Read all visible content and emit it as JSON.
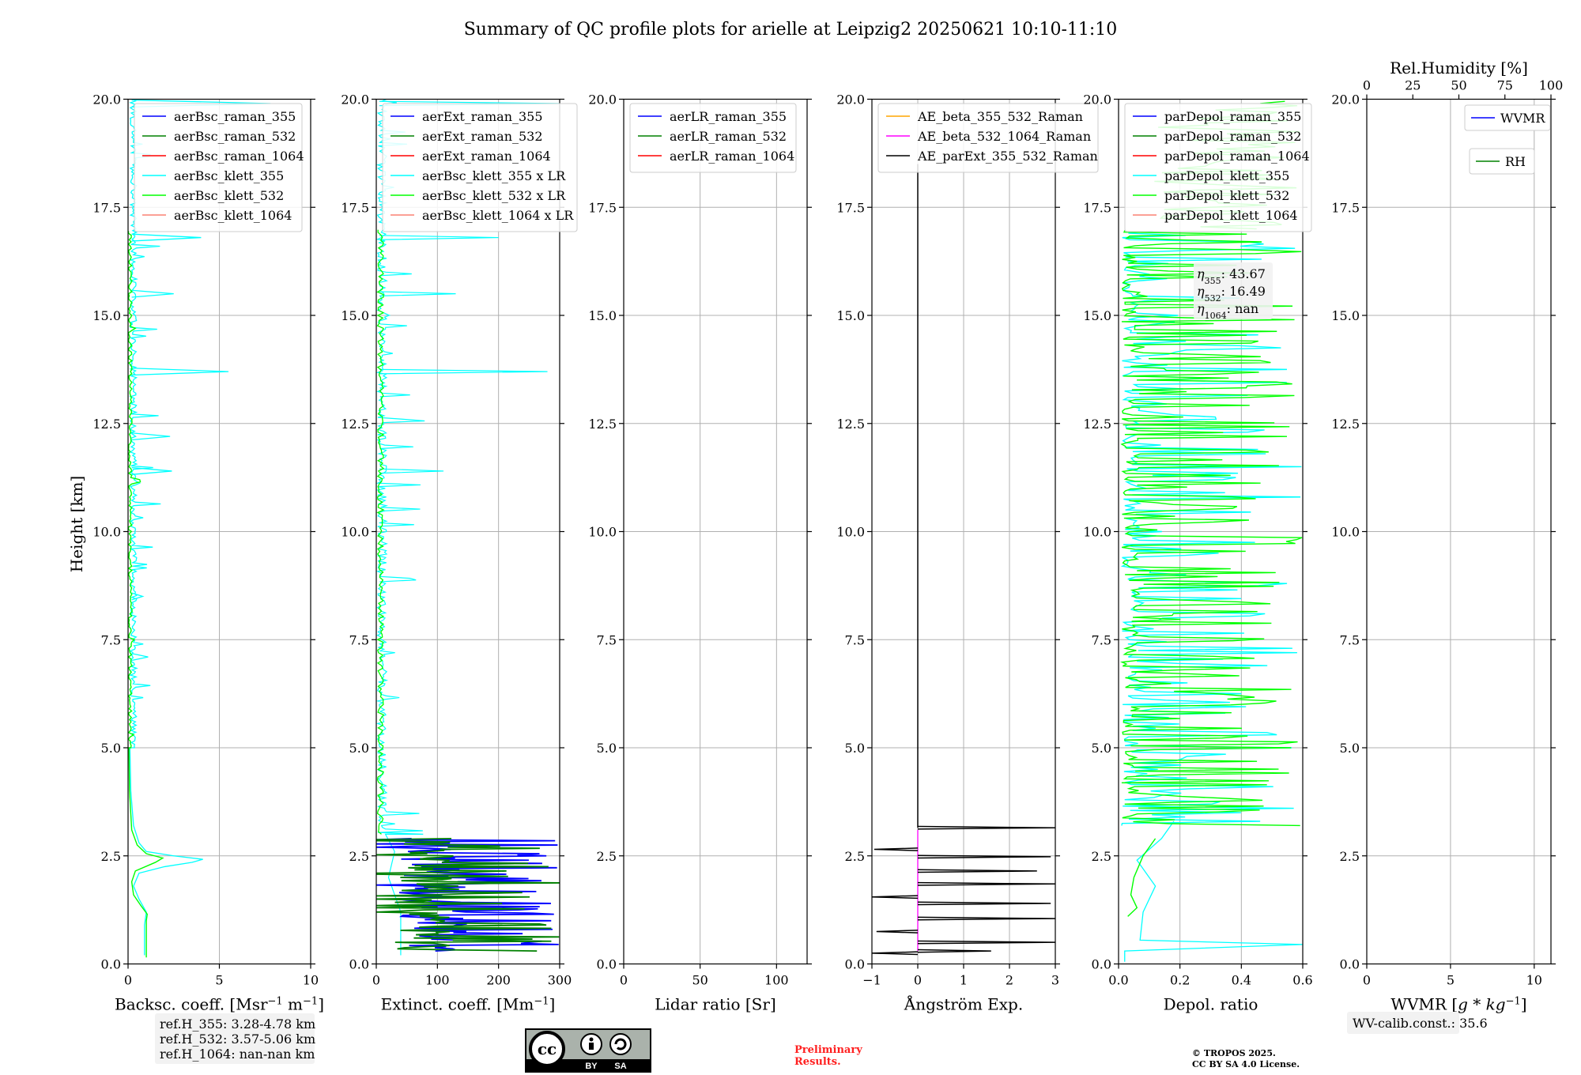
{
  "figure": {
    "title": "Summary of QC profile plots for arielle at Leipzig2 20250621 10:10-11:10",
    "ylabel": "Height [km]",
    "ref_heights": [
      "ref.H_355: 3.28-4.78 km",
      "ref.H_532: 3.57-5.06 km",
      "ref.H_1064: nan-nan km"
    ],
    "license_badge": {
      "left": "cc",
      "by": "BY",
      "sa": "SA"
    },
    "preliminary": [
      "Preliminary",
      "Results."
    ],
    "copyright": [
      "© TROPOS 2025.",
      "CC BY SA 4.0 License."
    ],
    "wv_calib": "WV-calib.const.: 35.6",
    "eta_box": [
      {
        "sym": "η",
        "sub": "355",
        "val": ": 43.67"
      },
      {
        "sym": "η",
        "sub": "532",
        "val": ": 16.49"
      },
      {
        "sym": "η",
        "sub": "1064",
        "val": ": nan"
      }
    ],
    "colors": {
      "blue": "#0000ff",
      "green": "#008000",
      "red": "#ff0000",
      "cyan": "#00ffff",
      "lime": "#00ff00",
      "salmon": "#fa8072",
      "orange": "#ffa500",
      "magenta": "#ff00ff",
      "black": "#000000"
    }
  },
  "chart_data": [
    {
      "id": "bsc",
      "type": "line",
      "xlabel_main": "Backsc. coeff. [Msr",
      "xlabel_sup1": "−1",
      "xlabel_mid": " m",
      "xlabel_sup2": "−1",
      "xlabel_end": "]",
      "xlim": [
        0,
        10
      ],
      "xticks": [
        0,
        5,
        10
      ],
      "ylim": [
        0,
        20
      ],
      "yticks": [
        "0.0",
        "2.5",
        "5.0",
        "7.5",
        "10.0",
        "12.5",
        "15.0",
        "17.5",
        "20.0"
      ],
      "legend": [
        "aerBsc_raman_355",
        "aerBsc_raman_532",
        "aerBsc_raman_1064",
        "aerBsc_klett_355",
        "aerBsc_klett_532",
        "aerBsc_klett_1064"
      ],
      "legend_colors": [
        "blue",
        "green",
        "red",
        "cyan",
        "lime",
        "salmon"
      ],
      "series": [
        {
          "name": "aerBsc_klett_355",
          "color": "cyan",
          "style": "noisy_bsc355",
          "points": [
            [
              0.9,
              0.2
            ],
            [
              0.9,
              0.9
            ],
            [
              1.0,
              1.2
            ],
            [
              0.6,
              1.5
            ],
            [
              0.3,
              1.8
            ],
            [
              0.6,
              2.1
            ],
            [
              2.0,
              2.25
            ],
            [
              3.5,
              2.35
            ],
            [
              4.1,
              2.42
            ],
            [
              2.5,
              2.5
            ],
            [
              1.0,
              2.6
            ],
            [
              0.6,
              2.8
            ],
            [
              0.3,
              3.2
            ],
            [
              0.15,
              4.0
            ],
            [
              0.1,
              5.0
            ]
          ]
        },
        {
          "name": "aerBsc_klett_532",
          "color": "lime",
          "style": "noisy_bsc532",
          "points": [
            [
              1.0,
              0.15
            ],
            [
              1.0,
              1.0
            ],
            [
              1.05,
              1.15
            ],
            [
              0.7,
              1.35
            ],
            [
              0.3,
              1.6
            ],
            [
              0.2,
              1.9
            ],
            [
              0.4,
              2.15
            ],
            [
              1.5,
              2.35
            ],
            [
              1.9,
              2.45
            ],
            [
              1.0,
              2.55
            ],
            [
              0.5,
              2.75
            ],
            [
              0.2,
              3.1
            ],
            [
              0.08,
              4.0
            ],
            [
              0.05,
              5.0
            ]
          ]
        }
      ],
      "spikes_355": [
        [
          13.7,
          5.5
        ],
        [
          11.4,
          2.4
        ],
        [
          8.5,
          0.8
        ],
        [
          7.1,
          1.1
        ],
        [
          16.8,
          4.0
        ],
        [
          15.5,
          2.5
        ],
        [
          12.2,
          2.3
        ],
        [
          19.9,
          7.8
        ]
      ]
    },
    {
      "id": "ext",
      "type": "line",
      "xlabel_main": "Extinct. coeff. [Mm",
      "xlabel_sup1": "−1",
      "xlabel_end": "]",
      "xlim": [
        0,
        300
      ],
      "xticks": [
        0,
        100,
        200,
        300
      ],
      "ylim": [
        0,
        20
      ],
      "yticks": [
        "0.0",
        "2.5",
        "5.0",
        "7.5",
        "10.0",
        "12.5",
        "15.0",
        "17.5",
        "20.0"
      ],
      "legend": [
        "aerExt_raman_355",
        "aerExt_raman_532",
        "aerExt_raman_1064",
        "aerBsc_klett_355 x LR",
        "aerBsc_klett_532 x LR",
        "aerBsc_klett_1064 x LR"
      ],
      "legend_colors": [
        "blue",
        "green",
        "red",
        "cyan",
        "lime",
        "salmon"
      ],
      "spikes_355": [
        [
          13.7,
          280
        ],
        [
          11.4,
          110
        ],
        [
          16.8,
          200
        ],
        [
          15.5,
          130
        ],
        [
          19.9,
          300
        ]
      ]
    },
    {
      "id": "lr",
      "type": "line",
      "xlabel": "Lidar ratio [Sr]",
      "xlim": [
        0,
        120
      ],
      "xticks": [
        0,
        50,
        100
      ],
      "ylim": [
        0,
        20
      ],
      "yticks": [
        "0.0",
        "2.5",
        "5.0",
        "7.5",
        "10.0",
        "12.5",
        "15.0",
        "17.5",
        "20.0"
      ],
      "legend": [
        "aerLR_raman_355",
        "aerLR_raman_532",
        "aerLR_raman_1064"
      ],
      "legend_colors": [
        "blue",
        "green",
        "red"
      ]
    },
    {
      "id": "ae",
      "type": "line",
      "xlabel": "Ångström Exp.",
      "xlim": [
        -1,
        3
      ],
      "xticks": [
        -1,
        0,
        1,
        2,
        3
      ],
      "ylim": [
        0,
        20
      ],
      "yticks": [
        "0.0",
        "2.5",
        "5.0",
        "7.5",
        "10.0",
        "12.5",
        "15.0",
        "17.5",
        "20.0"
      ],
      "legend": [
        "AE_beta_355_532_Raman",
        "AE_beta_532_1064_Raman",
        "AE_parExt_355_532_Raman"
      ],
      "legend_colors": [
        "orange",
        "magenta",
        "black"
      ],
      "spikes": [
        [
          3.15,
          3.0
        ],
        [
          2.65,
          -0.95
        ],
        [
          2.48,
          2.9
        ],
        [
          2.15,
          2.6
        ],
        [
          1.85,
          3.0
        ],
        [
          1.55,
          -1.0
        ],
        [
          1.4,
          2.9
        ],
        [
          1.05,
          3.0
        ],
        [
          0.75,
          -0.9
        ],
        [
          0.5,
          3.0
        ],
        [
          0.3,
          1.6
        ],
        [
          0.25,
          -1.0
        ]
      ]
    },
    {
      "id": "depol",
      "type": "line",
      "xlabel": "Depol. ratio",
      "xlim": [
        0,
        0.6
      ],
      "xticks": [
        "0.0",
        "0.2",
        "0.4",
        "0.6"
      ],
      "ylim": [
        0,
        20
      ],
      "yticks": [
        "0.0",
        "2.5",
        "5.0",
        "7.5",
        "10.0",
        "12.5",
        "15.0",
        "17.5",
        "20.0"
      ],
      "legend": [
        "parDepol_raman_355",
        "parDepol_raman_532",
        "parDepol_raman_1064",
        "parDepol_klett_355",
        "parDepol_klett_532",
        "parDepol_klett_1064"
      ],
      "legend_colors": [
        "blue",
        "green",
        "red",
        "cyan",
        "lime",
        "salmon"
      ]
    },
    {
      "id": "wv",
      "type": "line",
      "xlabel_main": "WVMR [",
      "xlabel_it": "g * kg",
      "xlabel_sup": "−1",
      "xlabel_end": "]",
      "xlim": [
        0,
        11
      ],
      "xticks": [
        0,
        5,
        10
      ],
      "top_xlabel": "Rel.Humidity [%]",
      "top_xticks": [
        0,
        25,
        50,
        75,
        100
      ],
      "ylim": [
        0,
        20
      ],
      "yticks": [
        "0.0",
        "2.5",
        "5.0",
        "7.5",
        "10.0",
        "12.5",
        "15.0",
        "17.5",
        "20.0"
      ],
      "legend": [
        "WVMR",
        "RH"
      ],
      "legend_colors": [
        "blue",
        "green"
      ]
    }
  ]
}
